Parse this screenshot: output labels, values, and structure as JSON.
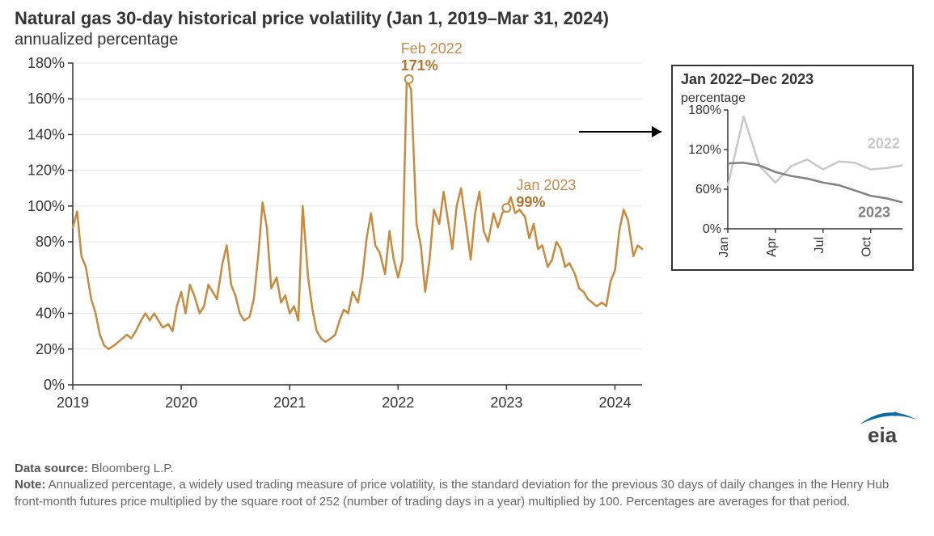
{
  "title": "Natural gas 30-day historical price volatility (Jan 1, 2019–Mar 31, 2024)",
  "subtitle": "annualized percentage",
  "main_chart": {
    "type": "line",
    "line_color": "#c88a3f",
    "line_width": 2.5,
    "marker_stroke": "#c88a3f",
    "marker_fill": "#ffffff",
    "axis_color": "#333333",
    "tick_color": "#333333",
    "grid_color": "#e5e5e5",
    "background_color": "#ffffff",
    "x_range_years": [
      2019,
      2024.25
    ],
    "y_range": [
      0,
      180
    ],
    "y_ticks": [
      0,
      20,
      40,
      60,
      80,
      100,
      120,
      140,
      160,
      180
    ],
    "y_tick_format": "{v}%",
    "x_ticks": [
      2019,
      2020,
      2021,
      2022,
      2023,
      2024
    ],
    "fontsize_ticks": 18,
    "series_years": [
      2019.0,
      2019.04,
      2019.08,
      2019.12,
      2019.17,
      2019.21,
      2019.25,
      2019.29,
      2019.33,
      2019.38,
      2019.42,
      2019.46,
      2019.5,
      2019.54,
      2019.58,
      2019.63,
      2019.67,
      2019.71,
      2019.75,
      2019.79,
      2019.83,
      2019.88,
      2019.92,
      2019.96,
      2020.0,
      2020.04,
      2020.08,
      2020.12,
      2020.17,
      2020.21,
      2020.25,
      2020.29,
      2020.33,
      2020.38,
      2020.42,
      2020.46,
      2020.5,
      2020.54,
      2020.58,
      2020.63,
      2020.67,
      2020.71,
      2020.75,
      2020.79,
      2020.83,
      2020.88,
      2020.92,
      2020.96,
      2021.0,
      2021.04,
      2021.08,
      2021.12,
      2021.17,
      2021.21,
      2021.25,
      2021.29,
      2021.33,
      2021.38,
      2021.42,
      2021.46,
      2021.5,
      2021.54,
      2021.58,
      2021.63,
      2021.67,
      2021.71,
      2021.75,
      2021.79,
      2021.83,
      2021.88,
      2021.92,
      2021.96,
      2022.0,
      2022.04,
      2022.08,
      2022.12,
      2022.17,
      2022.21,
      2022.25,
      2022.29,
      2022.33,
      2022.38,
      2022.42,
      2022.46,
      2022.5,
      2022.54,
      2022.58,
      2022.63,
      2022.67,
      2022.71,
      2022.75,
      2022.79,
      2022.83,
      2022.88,
      2022.92,
      2022.96,
      2023.0,
      2023.04,
      2023.08,
      2023.12,
      2023.17,
      2023.21,
      2023.25,
      2023.29,
      2023.33,
      2023.38,
      2023.42,
      2023.46,
      2023.5,
      2023.54,
      2023.58,
      2023.63,
      2023.67,
      2023.71,
      2023.75,
      2023.79,
      2023.83,
      2023.88,
      2023.92,
      2023.96,
      2024.0,
      2024.04,
      2024.08,
      2024.12,
      2024.17,
      2024.21,
      2024.25
    ],
    "series_values": [
      88,
      97,
      72,
      66,
      48,
      40,
      28,
      22,
      20,
      22,
      24,
      26,
      28,
      26,
      30,
      36,
      40,
      36,
      40,
      36,
      32,
      34,
      30,
      44,
      52,
      40,
      56,
      50,
      40,
      44,
      56,
      52,
      48,
      68,
      78,
      56,
      50,
      40,
      36,
      38,
      48,
      72,
      102,
      88,
      54,
      60,
      46,
      50,
      40,
      44,
      36,
      100,
      60,
      42,
      30,
      26,
      24,
      26,
      28,
      36,
      42,
      40,
      52,
      46,
      60,
      82,
      96,
      78,
      74,
      62,
      86,
      70,
      60,
      70,
      171,
      165,
      90,
      78,
      52,
      70,
      98,
      90,
      108,
      92,
      76,
      100,
      110,
      88,
      70,
      96,
      108,
      86,
      80,
      96,
      88,
      96,
      99,
      105,
      96,
      98,
      94,
      82,
      90,
      76,
      78,
      66,
      70,
      80,
      76,
      66,
      68,
      62,
      54,
      52,
      48,
      46,
      44,
      46,
      44,
      58,
      64,
      86,
      98,
      92,
      72,
      78,
      76
    ],
    "annotations": [
      {
        "label_line1": "Feb 2022",
        "label_line2": "171%",
        "x_year": 2022.1,
        "y_value": 171
      },
      {
        "label_line1": "Jan 2023",
        "label_line2": "99%",
        "x_year": 2023.0,
        "y_value": 99
      }
    ]
  },
  "inset_chart": {
    "title": "Jan 2022–Dec 2023",
    "subtitle": "percentage",
    "title_fontsize": 18,
    "subtitle_fontsize": 16,
    "axis_color": "#333333",
    "background_color": "#ffffff",
    "y_range": [
      0,
      180
    ],
    "y_ticks": [
      0,
      60,
      120,
      180
    ],
    "y_tick_format": "{v}%",
    "x_labels": [
      "Jan",
      "Apr",
      "Jul",
      "Oct"
    ],
    "x_label_rotation_deg": -90,
    "fontsize_ticks": 16,
    "series": [
      {
        "name": "2022",
        "color": "#c8c8c8",
        "line_width": 2.5,
        "x": [
          1,
          2,
          3,
          4,
          5,
          6,
          7,
          8,
          9,
          10,
          11,
          12
        ],
        "y": [
          65,
          170,
          95,
          70,
          95,
          105,
          90,
          102,
          100,
          90,
          92,
          96
        ]
      },
      {
        "name": "2023",
        "color": "#808080",
        "line_width": 2.5,
        "x": [
          1,
          2,
          3,
          4,
          5,
          6,
          7,
          8,
          9,
          10,
          11,
          12
        ],
        "y": [
          99,
          100,
          96,
          86,
          80,
          76,
          70,
          66,
          58,
          50,
          46,
          40
        ]
      }
    ],
    "series_label_fontsize": 18,
    "series_label_weight": 700
  },
  "arrow": {
    "color": "#000000",
    "width": 2
  },
  "footnote": {
    "source_label": "Data source:",
    "source_value": "Bloomberg L.P.",
    "note_label": "Note:",
    "note_text": "Annualized percentage, a widely used trading measure of price volatility, is the standard deviation for the previous 30 days of daily changes in the Henry Hub front-month futures price multiplied by the square root of 252 (number of trading days in a year) multiplied by 100. Percentages are averages for that period."
  },
  "logo": {
    "text": "eia",
    "text_color": "#444444",
    "swoosh_color": "#0b6aa2"
  }
}
